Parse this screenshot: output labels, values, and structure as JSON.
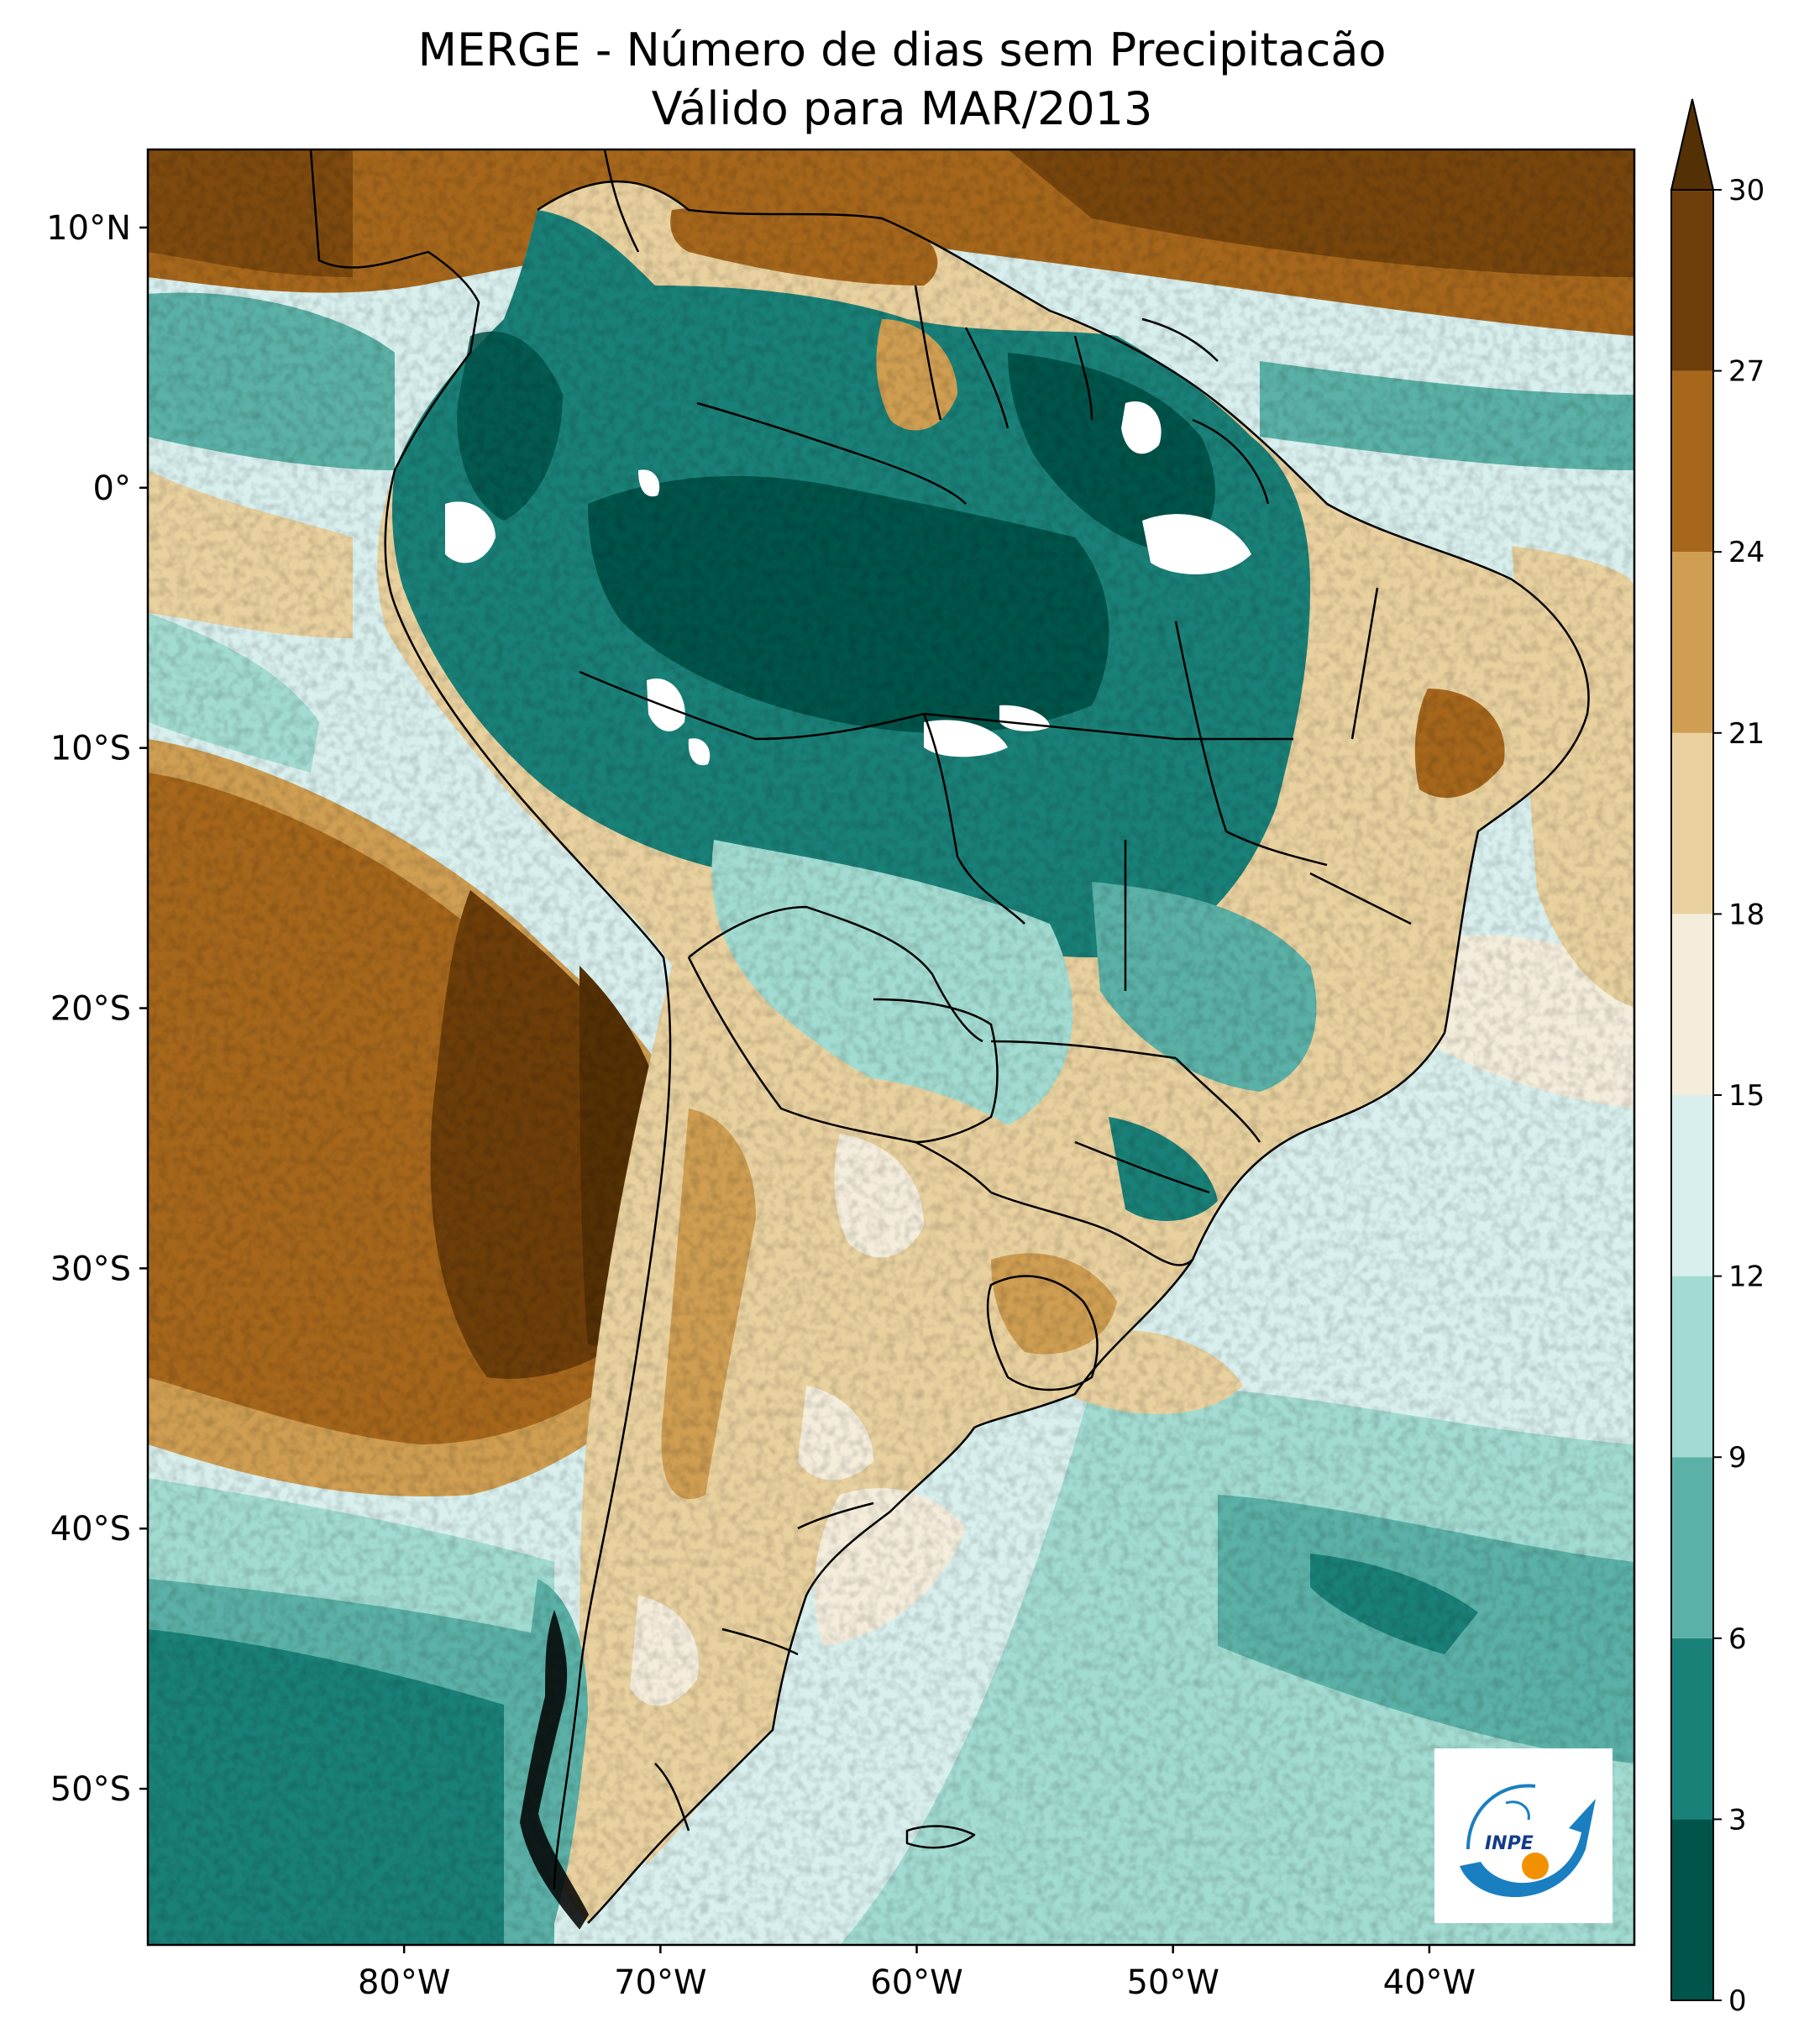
{
  "title": {
    "line1": "MERGE - Número de dias sem Precipitacão",
    "line2": "Válido para MAR/2013"
  },
  "map": {
    "region": "South America",
    "lon_range": [
      -90,
      -32
    ],
    "lat_range": [
      -56,
      13
    ],
    "x_ticks": [
      {
        "lon": -80,
        "label": "80°W"
      },
      {
        "lon": -70,
        "label": "70°W"
      },
      {
        "lon": -60,
        "label": "60°W"
      },
      {
        "lon": -50,
        "label": "50°W"
      },
      {
        "lon": -40,
        "label": "40°W"
      }
    ],
    "y_ticks": [
      {
        "lat": 10,
        "label": "10°N"
      },
      {
        "lat": 0,
        "label": "0°"
      },
      {
        "lat": -10,
        "label": "10°S"
      },
      {
        "lat": -20,
        "label": "20°S"
      },
      {
        "lat": -30,
        "label": "30°S"
      },
      {
        "lat": -40,
        "label": "40°S"
      },
      {
        "lat": -50,
        "label": "50°S"
      }
    ]
  },
  "colorbar": {
    "levels": [
      0,
      3,
      6,
      9,
      12,
      15,
      18,
      21,
      24,
      27,
      30
    ],
    "labels": [
      "0",
      "3",
      "6",
      "9",
      "12",
      "15",
      "18",
      "21",
      "24",
      "27",
      "30"
    ],
    "colors": [
      "#01544a",
      "#1a8178",
      "#5bb1a7",
      "#a2dbd1",
      "#d8efed",
      "#f4eddc",
      "#e9d19f",
      "#cf9e52",
      "#a6671c",
      "#6d3e0a",
      "#543005"
    ],
    "extend": "max"
  },
  "logo": {
    "text": "INPE"
  }
}
